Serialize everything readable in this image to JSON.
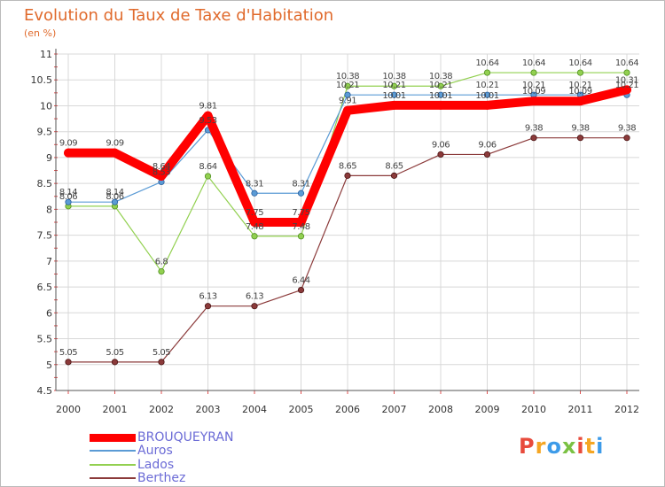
{
  "chart_data": {
    "type": "line",
    "title": "Evolution du Taux de Taxe d'Habitation",
    "subtitle": "(en %)",
    "xlabel": "",
    "ylabel": "",
    "x": [
      "2000",
      "2001",
      "2002",
      "2003",
      "2004",
      "2005",
      "2006",
      "2007",
      "2008",
      "2009",
      "2010",
      "2011",
      "2012"
    ],
    "ylim": [
      4.5,
      11
    ],
    "yticks": [
      "4.5",
      "5",
      "5.5",
      "6",
      "6.5",
      "7",
      "7.5",
      "8",
      "8.5",
      "9",
      "9.5",
      "10",
      "10.5",
      "11"
    ],
    "grid": true,
    "legend_position": "bottom-left",
    "series": [
      {
        "name": "BROUQUEYRAN",
        "color": "#ff0000",
        "values": [
          9.09,
          9.09,
          8.64,
          9.81,
          7.75,
          7.75,
          9.91,
          10.01,
          10.01,
          10.01,
          10.09,
          10.09,
          10.31
        ],
        "labels": [
          "9.09",
          "9.09",
          "8.64",
          "9.81",
          "7.75",
          "7.75",
          "9.91",
          "10.01",
          "10.01",
          "10.01",
          "10.09",
          "10.09",
          "10.31"
        ]
      },
      {
        "name": "Auros",
        "color": "#5b9bd5",
        "values": [
          8.14,
          8.14,
          8.53,
          9.53,
          8.31,
          8.31,
          10.21,
          10.21,
          10.21,
          10.21,
          10.21,
          10.21,
          10.21
        ],
        "labels": [
          "8.14",
          "8.14",
          "8.53",
          "9.53",
          "8.31",
          "8.31",
          "10.21",
          "10.21",
          "10.21",
          "10.21",
          "10.21",
          "10.21",
          "10.21"
        ]
      },
      {
        "name": "Lados",
        "color": "#92d050",
        "values": [
          8.06,
          8.06,
          6.8,
          8.64,
          7.48,
          7.48,
          10.38,
          10.38,
          10.38,
          10.64,
          10.64,
          10.64,
          10.64
        ],
        "labels": [
          "8.06",
          "8.06",
          "6.8",
          "8.64",
          "7.48",
          "7.48",
          "10.38",
          "10.38",
          "10.38",
          "10.64",
          "10.64",
          "10.64",
          "10.64"
        ]
      },
      {
        "name": "Berthez",
        "color": "#8b3a3a",
        "values": [
          5.05,
          5.05,
          5.05,
          6.13,
          6.13,
          6.44,
          8.65,
          8.65,
          9.06,
          9.06,
          9.38,
          9.38,
          9.38
        ],
        "labels": [
          "5.05",
          "5.05",
          "5.05",
          "6.13",
          "6.13",
          "6.44",
          "8.65",
          "8.65",
          "9.06",
          "9.06",
          "9.38",
          "9.38",
          "9.38"
        ]
      }
    ]
  },
  "legend": {
    "items": [
      {
        "label": "BROUQUEYRAN"
      },
      {
        "label": "Auros"
      },
      {
        "label": "Lados"
      },
      {
        "label": "Berthez"
      }
    ]
  },
  "brand": {
    "logo_text": "Proxiti",
    "letter_colors": [
      "#e84b3c",
      "#f5a623",
      "#3d9be9",
      "#7ac143",
      "#e84b3c",
      "#f5a623",
      "#3d9be9"
    ]
  }
}
